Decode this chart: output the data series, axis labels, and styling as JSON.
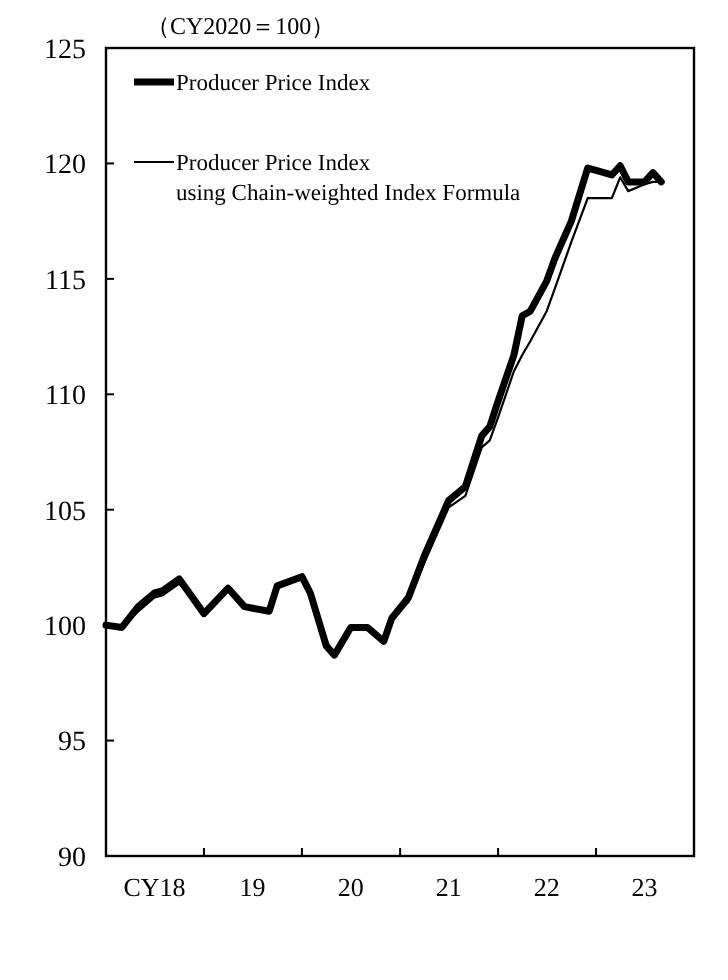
{
  "chart_data": {
    "type": "line",
    "ylabel": "（CY2020＝100）",
    "xlim": [
      "2018-01",
      "2024-01"
    ],
    "ylim": [
      90,
      125
    ],
    "yticks": [
      90,
      95,
      100,
      105,
      110,
      115,
      120,
      125
    ],
    "xticks": [
      {
        "value": "2018-07",
        "label": "CY18"
      },
      {
        "value": "2019-01",
        "label": null
      },
      {
        "value": "2019-07",
        "label": "19"
      },
      {
        "value": "2020-01",
        "label": null
      },
      {
        "value": "2020-07",
        "label": "20"
      },
      {
        "value": "2021-01",
        "label": null
      },
      {
        "value": "2021-07",
        "label": "21"
      },
      {
        "value": "2022-01",
        "label": null
      },
      {
        "value": "2022-07",
        "label": "22"
      },
      {
        "value": "2023-01",
        "label": null
      },
      {
        "value": "2023-07",
        "label": "23"
      }
    ],
    "grid": false,
    "legend": "top left",
    "marker": "none",
    "line_style": "solid",
    "series": [
      {
        "name": "Producer Price Index",
        "color": "#000000",
        "x": [
          "2018-01",
          "2018-03",
          "2018-05",
          "2018-07",
          "2018-08",
          "2018-10",
          "2019-01",
          "2019-04",
          "2019-06",
          "2019-09",
          "2019-10",
          "2020-01",
          "2020-02",
          "2020-04",
          "2020-05",
          "2020-07",
          "2020-09",
          "2020-11",
          "2020-12",
          "2021-02",
          "2021-04",
          "2021-07",
          "2021-09",
          "2021-11",
          "2021-12",
          "2022-01",
          "2022-03",
          "2022-04",
          "2022-05",
          "2022-07",
          "2022-08",
          "2022-10",
          "2022-12",
          "2023-01",
          "2023-03",
          "2023-04",
          "2023-05",
          "2023-07",
          "2023-08",
          "2023-09"
        ],
        "values": [
          100.0,
          99.9,
          100.8,
          101.4,
          101.5,
          102.0,
          100.5,
          101.6,
          100.8,
          100.6,
          101.7,
          102.1,
          101.4,
          99.1,
          98.7,
          99.9,
          99.9,
          99.3,
          100.3,
          101.2,
          103.0,
          105.4,
          106.0,
          108.2,
          108.6,
          109.7,
          111.7,
          113.4,
          113.6,
          114.9,
          115.9,
          117.5,
          119.8,
          119.7,
          119.5,
          119.9,
          119.2,
          119.2,
          119.6,
          119.2
        ]
      },
      {
        "name": "Producer Price Index\nusing Chain-weighted Index Formula",
        "color": "#000000",
        "x": [
          "2018-01",
          "2018-03",
          "2018-05",
          "2018-07",
          "2018-08",
          "2018-10",
          "2019-01",
          "2019-04",
          "2019-06",
          "2019-09",
          "2019-10",
          "2020-01",
          "2020-02",
          "2020-04",
          "2020-05",
          "2020-07",
          "2020-09",
          "2020-11",
          "2020-12",
          "2021-02",
          "2021-04",
          "2021-07",
          "2021-09",
          "2021-11",
          "2021-12",
          "2022-01",
          "2022-03",
          "2022-04",
          "2022-05",
          "2022-07",
          "2022-08",
          "2022-10",
          "2022-12",
          "2023-01",
          "2023-03",
          "2023-04",
          "2023-05",
          "2023-07",
          "2023-08",
          "2023-09"
        ],
        "values": [
          100.0,
          99.9,
          100.6,
          101.2,
          101.3,
          101.8,
          100.5,
          101.5,
          100.8,
          100.6,
          101.6,
          102.0,
          101.3,
          99.1,
          98.8,
          99.9,
          99.9,
          99.3,
          100.2,
          101.0,
          102.7,
          105.1,
          105.6,
          107.7,
          108.0,
          109.0,
          111.0,
          111.7,
          112.3,
          113.6,
          114.6,
          116.6,
          118.5,
          118.5,
          118.5,
          119.4,
          118.8,
          119.1,
          119.2,
          119.2
        ]
      }
    ]
  }
}
